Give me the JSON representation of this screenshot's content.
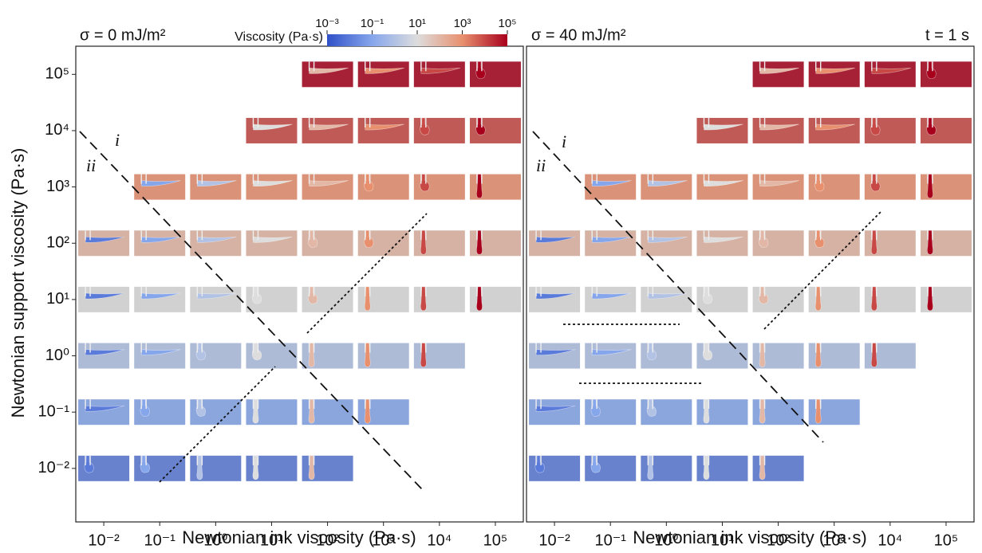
{
  "chart_data": [
    {
      "type": "matrix",
      "title": "σ = 0 mJ/m²",
      "xlabel": "Newtonian ink viscosity (Pa·s)",
      "ylabel": "Newtonian support viscosity (Pa·s)",
      "log": true,
      "xlim": [
        0.00316,
        316000
      ],
      "ylim": [
        0.00112,
        316000
      ],
      "xticks": [
        {
          "value": 0.01,
          "label": "10⁻²"
        },
        {
          "value": 0.1,
          "label": "10⁻¹"
        },
        {
          "value": 1,
          "label": "10⁰"
        },
        {
          "value": 10,
          "label": "10¹"
        },
        {
          "value": 100,
          "label": "10²"
        },
        {
          "value": 1000,
          "label": "10³"
        },
        {
          "value": 10000,
          "label": "10⁴"
        },
        {
          "value": 100000,
          "label": "10⁵"
        }
      ],
      "yticks": [
        {
          "value": 0.01,
          "label": "10⁻²"
        },
        {
          "value": 0.1,
          "label": "10⁻¹"
        },
        {
          "value": 1,
          "label": "10⁰"
        },
        {
          "value": 10,
          "label": "10¹"
        },
        {
          "value": 100,
          "label": "10²"
        },
        {
          "value": 1000,
          "label": "10³"
        },
        {
          "value": 10000,
          "label": "10⁴"
        },
        {
          "value": 100000,
          "label": "10⁵"
        }
      ],
      "rows": [
        {
          "support": 100000,
          "inks": [
            100,
            1000,
            10000,
            100000
          ]
        },
        {
          "support": 10000,
          "inks": [
            10,
            100,
            1000,
            10000,
            100000
          ]
        },
        {
          "support": 1000,
          "inks": [
            0.1,
            1,
            10,
            100,
            1000,
            10000,
            100000
          ]
        },
        {
          "support": 100,
          "inks": [
            0.01,
            0.1,
            1,
            10,
            100,
            1000,
            10000,
            100000
          ]
        },
        {
          "support": 10,
          "inks": [
            0.01,
            0.1,
            1,
            10,
            100,
            1000,
            10000,
            100000
          ]
        },
        {
          "support": 1,
          "inks": [
            0.01,
            0.1,
            1,
            10,
            100,
            1000,
            10000
          ]
        },
        {
          "support": 0.1,
          "inks": [
            0.01,
            0.1,
            1,
            10,
            100,
            1000
          ]
        },
        {
          "support": 0.01,
          "inks": [
            0.01,
            0.1,
            1,
            10,
            100
          ]
        }
      ],
      "annotations": [
        "i",
        "ii"
      ],
      "colorbar": {
        "label": "Viscosity (Pa·s)",
        "lim": [
          0.001,
          100000
        ],
        "colors": [
          "#3050c8",
          "#86a6ec",
          "#dddddd",
          "#e8906e",
          "#a8001c"
        ],
        "ticks": [
          {
            "value": 0.001,
            "label": "10⁻³"
          },
          {
            "value": 0.1,
            "label": "10⁻¹"
          },
          {
            "value": 10,
            "label": "10¹"
          },
          {
            "value": 1000,
            "label": "10³"
          },
          {
            "value": 100000,
            "label": "10⁵"
          }
        ]
      }
    },
    {
      "type": "matrix",
      "title": "σ = 40 mJ/m²",
      "xlabel": "Newtonian ink viscosity (Pa·s)",
      "time": "t = 1 s",
      "log": true,
      "xlim": [
        0.00316,
        316000
      ],
      "ylim": [
        0.00112,
        316000
      ],
      "xticks": [
        {
          "value": 0.01,
          "label": "10⁻²"
        },
        {
          "value": 0.1,
          "label": "10⁻¹"
        },
        {
          "value": 1,
          "label": "10⁰"
        },
        {
          "value": 10,
          "label": "10¹"
        },
        {
          "value": 100,
          "label": "10²"
        },
        {
          "value": 1000,
          "label": "10³"
        },
        {
          "value": 10000,
          "label": "10⁴"
        },
        {
          "value": 100000,
          "label": "10⁵"
        }
      ],
      "rows": [
        {
          "support": 100000,
          "inks": [
            100,
            1000,
            10000,
            100000
          ]
        },
        {
          "support": 10000,
          "inks": [
            10,
            100,
            1000,
            10000,
            100000
          ]
        },
        {
          "support": 1000,
          "inks": [
            0.1,
            1,
            10,
            100,
            1000,
            10000,
            100000
          ]
        },
        {
          "support": 100,
          "inks": [
            0.01,
            0.1,
            1,
            10,
            100,
            1000,
            10000,
            100000
          ]
        },
        {
          "support": 10,
          "inks": [
            0.01,
            0.1,
            1,
            10,
            100,
            1000,
            10000,
            100000
          ]
        },
        {
          "support": 1,
          "inks": [
            0.01,
            0.1,
            1,
            10,
            100,
            1000,
            10000
          ]
        },
        {
          "support": 0.1,
          "inks": [
            0.01,
            0.1,
            1,
            10,
            100,
            1000
          ]
        },
        {
          "support": 0.01,
          "inks": [
            0.01,
            0.1,
            1,
            10,
            100
          ]
        }
      ],
      "annotations": [
        "i",
        "ii"
      ]
    }
  ]
}
